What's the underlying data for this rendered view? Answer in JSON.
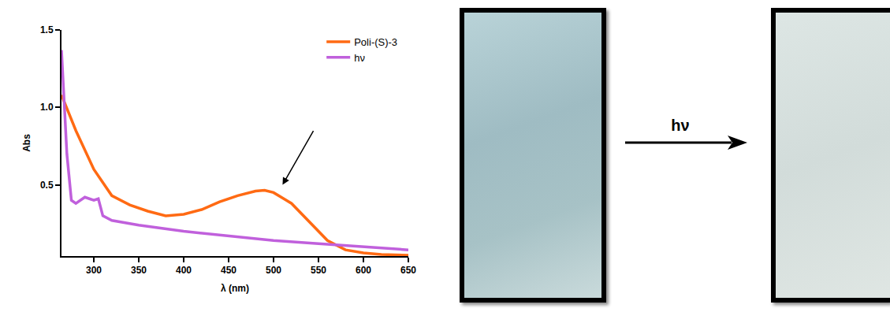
{
  "chart_data": {
    "type": "line",
    "xlabel": "λ (nm)",
    "ylabel": "Abs",
    "series": [
      {
        "name": "Poli-(S)-3",
        "color": "#ff6a13",
        "x": [
          264,
          280,
          300,
          320,
          340,
          360,
          380,
          400,
          420,
          440,
          460,
          480,
          490,
          500,
          520,
          540,
          560,
          580,
          600,
          620,
          650
        ],
        "values": [
          1.08,
          0.85,
          0.6,
          0.43,
          0.37,
          0.33,
          0.3,
          0.31,
          0.34,
          0.39,
          0.43,
          0.46,
          0.465,
          0.45,
          0.38,
          0.26,
          0.14,
          0.08,
          0.06,
          0.05,
          0.045
        ]
      },
      {
        "name": "hν",
        "color": "#c060dc",
        "x": [
          264,
          270,
          275,
          280,
          290,
          295,
          300,
          305,
          310,
          320,
          350,
          400,
          450,
          500,
          550,
          600,
          650
        ],
        "values": [
          1.37,
          0.7,
          0.4,
          0.38,
          0.42,
          0.41,
          0.4,
          0.41,
          0.3,
          0.27,
          0.24,
          0.2,
          0.17,
          0.14,
          0.12,
          0.1,
          0.08
        ]
      }
    ],
    "xlim": [
      264,
      650
    ],
    "xticks": [
      300,
      350,
      400,
      450,
      500,
      550,
      600,
      650
    ],
    "ylim": [
      0.04,
      1.5
    ],
    "yticks": [
      0.5,
      {
        "value": 1,
        "label": "1.0"
      },
      1.5
    ],
    "grid": false,
    "legend": "upper right"
  },
  "scheme": {
    "arrow_label": "hν"
  }
}
